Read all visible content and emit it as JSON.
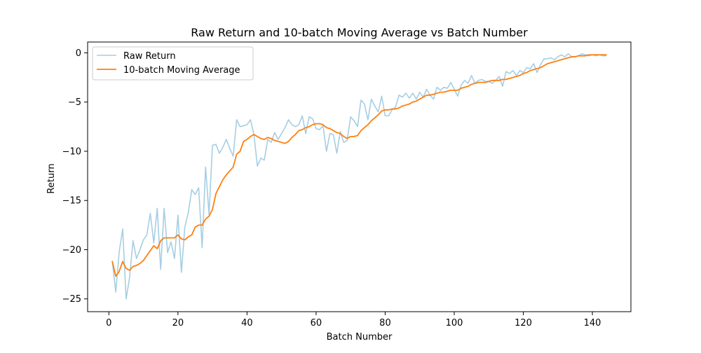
{
  "chart_data": {
    "type": "line",
    "title": "Raw Return and 10-batch Moving Average vs Batch Number",
    "xlabel": "Batch Number",
    "ylabel": "Return",
    "xlim": [
      -6.15,
      151.15
    ],
    "ylim": [
      -26.3,
      1.1
    ],
    "xticks": [
      0,
      20,
      40,
      60,
      80,
      100,
      120,
      140
    ],
    "yticks": [
      0,
      -5,
      -10,
      -15,
      -20,
      -25
    ],
    "xtick_labels": [
      "0",
      "20",
      "40",
      "60",
      "80",
      "100",
      "120",
      "140"
    ],
    "ytick_labels": [
      "0",
      "−5",
      "−10",
      "−15",
      "−20",
      "−25"
    ],
    "grid": false,
    "legend_position": "upper-left",
    "series": [
      {
        "name": "Raw Return",
        "color": "#a6cee3",
        "x": [
          1,
          2,
          3,
          4,
          5,
          6,
          7,
          8,
          9,
          10,
          11,
          12,
          13,
          14,
          15,
          16,
          17,
          18,
          19,
          20,
          21,
          22,
          23,
          24,
          25,
          26,
          27,
          28,
          29,
          30,
          31,
          32,
          33,
          34,
          35,
          36,
          37,
          38,
          39,
          40,
          41,
          42,
          43,
          44,
          45,
          46,
          47,
          48,
          49,
          50,
          51,
          52,
          53,
          54,
          55,
          56,
          57,
          58,
          59,
          60,
          61,
          62,
          63,
          64,
          65,
          66,
          67,
          68,
          69,
          70,
          71,
          72,
          73,
          74,
          75,
          76,
          77,
          78,
          79,
          80,
          81,
          82,
          83,
          84,
          85,
          86,
          87,
          88,
          89,
          90,
          91,
          92,
          93,
          94,
          95,
          96,
          97,
          98,
          99,
          100,
          101,
          102,
          103,
          104,
          105,
          106,
          107,
          108,
          109,
          110,
          111,
          112,
          113,
          114,
          115,
          116,
          117,
          118,
          119,
          120,
          121,
          122,
          123,
          124,
          125,
          126,
          127,
          128,
          129,
          130,
          131,
          132,
          133,
          134,
          135,
          136,
          137,
          138,
          139,
          140,
          141,
          142,
          143,
          144
        ],
        "y": [
          -21.2,
          -24.3,
          -20.2,
          -17.9,
          -25.0,
          -22.8,
          -19.1,
          -20.9,
          -20.0,
          -19.0,
          -18.5,
          -16.3,
          -19.3,
          -15.8,
          -22.0,
          -15.8,
          -20.3,
          -19.2,
          -20.9,
          -16.5,
          -22.3,
          -17.7,
          -16.2,
          -13.9,
          -14.4,
          -13.7,
          -19.8,
          -11.6,
          -16.4,
          -9.4,
          -9.3,
          -10.2,
          -9.6,
          -8.8,
          -9.7,
          -10.5,
          -6.8,
          -7.5,
          -7.4,
          -7.3,
          -6.8,
          -8.3,
          -11.5,
          -10.7,
          -10.9,
          -8.8,
          -9.1,
          -8.1,
          -8.8,
          -8.2,
          -7.6,
          -6.8,
          -7.3,
          -7.5,
          -7.3,
          -6.4,
          -8.2,
          -6.5,
          -6.7,
          -7.7,
          -7.8,
          -7.4,
          -10.0,
          -8.2,
          -8.3,
          -10.2,
          -8.0,
          -9.1,
          -8.9,
          -6.5,
          -6.9,
          -7.5,
          -4.8,
          -5.2,
          -6.8,
          -4.7,
          -5.4,
          -6.0,
          -4.4,
          -6.4,
          -6.4,
          -5.8,
          -5.5,
          -4.3,
          -4.5,
          -4.1,
          -4.6,
          -4.1,
          -4.7,
          -4.0,
          -4.5,
          -3.7,
          -4.3,
          -4.7,
          -3.5,
          -3.8,
          -3.5,
          -3.6,
          -3.0,
          -3.7,
          -4.4,
          -3.3,
          -2.8,
          -3.1,
          -2.3,
          -3.1,
          -2.8,
          -2.7,
          -2.9,
          -2.9,
          -3.1,
          -2.8,
          -2.4,
          -3.4,
          -1.9,
          -2.1,
          -1.8,
          -2.3,
          -1.8,
          -2.0,
          -1.5,
          -1.6,
          -1.1,
          -2.0,
          -1.2,
          -0.6,
          -0.6,
          -0.5,
          -0.7,
          -0.4,
          -0.2,
          -0.4,
          -0.1,
          -0.4,
          -0.4,
          -0.3,
          -0.1,
          -0.2,
          -0.3,
          -0.2,
          -0.3,
          -0.2,
          -0.3,
          -0.3
        ]
      },
      {
        "name": "10-batch Moving Average",
        "color": "#ff7f0e",
        "x": [
          1,
          2,
          3,
          4,
          5,
          6,
          7,
          8,
          9,
          10,
          11,
          12,
          13,
          14,
          15,
          16,
          17,
          18,
          19,
          20,
          21,
          22,
          23,
          24,
          25,
          26,
          27,
          28,
          29,
          30,
          31,
          32,
          33,
          34,
          35,
          36,
          37,
          38,
          39,
          40,
          41,
          42,
          43,
          44,
          45,
          46,
          47,
          48,
          49,
          50,
          51,
          52,
          53,
          54,
          55,
          56,
          57,
          58,
          59,
          60,
          61,
          62,
          63,
          64,
          65,
          66,
          67,
          68,
          69,
          70,
          71,
          72,
          73,
          74,
          75,
          76,
          77,
          78,
          79,
          80,
          81,
          82,
          83,
          84,
          85,
          86,
          87,
          88,
          89,
          90,
          91,
          92,
          93,
          94,
          95,
          96,
          97,
          98,
          99,
          100,
          101,
          102,
          103,
          104,
          105,
          106,
          107,
          108,
          109,
          110,
          111,
          112,
          113,
          114,
          115,
          116,
          117,
          118,
          119,
          120,
          121,
          122,
          123,
          124,
          125,
          126,
          127,
          128,
          129,
          130,
          131,
          132,
          133,
          134,
          135,
          136,
          137,
          138,
          139,
          140,
          141,
          142,
          143,
          144
        ],
        "y": [
          -21.2,
          -22.7,
          -22.2,
          -21.2,
          -21.9,
          -22.1,
          -21.7,
          -21.6,
          -21.4,
          -21.1,
          -20.6,
          -20.1,
          -19.6,
          -19.9,
          -19.1,
          -18.8,
          -18.8,
          -18.8,
          -18.8,
          -18.5,
          -18.9,
          -19.0,
          -18.7,
          -18.5,
          -17.7,
          -17.5,
          -17.5,
          -16.9,
          -16.6,
          -15.9,
          -14.3,
          -13.6,
          -12.9,
          -12.4,
          -12.0,
          -11.6,
          -10.3,
          -10.0,
          -9.0,
          -8.8,
          -8.5,
          -8.3,
          -8.5,
          -8.7,
          -8.8,
          -8.6,
          -8.7,
          -8.9,
          -9.0,
          -9.1,
          -9.2,
          -9.0,
          -8.6,
          -8.3,
          -7.9,
          -7.8,
          -7.6,
          -7.5,
          -7.3,
          -7.2,
          -7.2,
          -7.3,
          -7.6,
          -7.7,
          -7.9,
          -8.1,
          -8.2,
          -8.5,
          -8.7,
          -8.5,
          -8.5,
          -8.4,
          -7.9,
          -7.6,
          -7.3,
          -6.9,
          -6.6,
          -6.3,
          -5.9,
          -5.8,
          -5.8,
          -5.7,
          -5.7,
          -5.6,
          -5.4,
          -5.3,
          -5.2,
          -5.0,
          -4.9,
          -4.7,
          -4.5,
          -4.3,
          -4.3,
          -4.2,
          -4.1,
          -4.0,
          -4.0,
          -3.9,
          -3.8,
          -3.8,
          -3.8,
          -3.6,
          -3.5,
          -3.4,
          -3.2,
          -3.1,
          -3.0,
          -3.0,
          -3.0,
          -2.9,
          -2.8,
          -2.8,
          -2.8,
          -2.7,
          -2.7,
          -2.6,
          -2.5,
          -2.4,
          -2.3,
          -2.1,
          -2.0,
          -1.8,
          -1.7,
          -1.6,
          -1.5,
          -1.3,
          -1.1,
          -1.0,
          -0.9,
          -0.8,
          -0.7,
          -0.6,
          -0.5,
          -0.4,
          -0.4,
          -0.3,
          -0.3,
          -0.3,
          -0.2,
          -0.2,
          -0.2,
          -0.2,
          -0.2,
          -0.2
        ]
      }
    ]
  }
}
